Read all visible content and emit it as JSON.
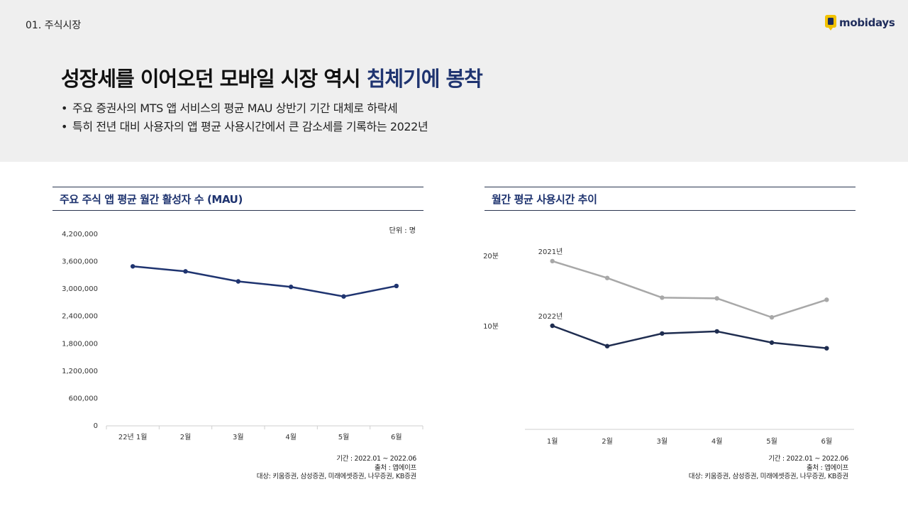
{
  "header": {
    "section": "01. 주식시장",
    "brand": "mobidays",
    "headline_main": "성장세를 이어오던 모바일 시장 역시 ",
    "headline_accent": "침체기에 봉착",
    "bullets": [
      "주요 증권사의 MTS 앱 서비스의 평균 MAU 상반기 기간 대체로 하락세",
      "특히 전년 대비 사용자의 앱 평균 사용시간에서 큰 감소세를 기록하는 2022년"
    ]
  },
  "colors": {
    "navy": "#1f3470",
    "gray_series": "#a8a8a8",
    "band": "#efefef"
  },
  "footnotes": {
    "period": "기간 : 2022.01 ~ 2022.06",
    "source": "출처 : 앱에이프",
    "targets": "대상: 키움증권, 삼성증권, 미래에셋증권, 나무증권, KB증권"
  },
  "chart_data": [
    {
      "type": "line",
      "title": "주요 주식 앱 평균 월간 활성자 수 (MAU)",
      "unit": "단위 : 명",
      "categories": [
        "22년 1월",
        "2월",
        "3월",
        "4월",
        "5월",
        "6월"
      ],
      "series": [
        {
          "values": [
            3480000,
            3370000,
            3150000,
            3030000,
            2820000,
            3050000
          ]
        }
      ],
      "yticks": [
        "4,200,000",
        "3,600,000",
        "3,000,000",
        "2,400,000",
        "1,800,000",
        "1,200,000",
        "600,000",
        "0"
      ],
      "ylim": [
        0,
        4200000
      ],
      "grid": false
    },
    {
      "type": "line",
      "title": "월간 평균 사용시간 추이",
      "categories": [
        "1월",
        "2월",
        "3월",
        "4월",
        "5월",
        "6월"
      ],
      "series": [
        {
          "name": "2021년",
          "values": [
            19.2,
            16.8,
            14.0,
            13.9,
            11.2,
            13.7
          ]
        },
        {
          "name": "2022년",
          "values": [
            10.0,
            7.1,
            8.9,
            9.2,
            7.6,
            6.8
          ]
        }
      ],
      "yticks": [
        "20분",
        "10분"
      ],
      "ylim": [
        0,
        20
      ],
      "grid": false
    }
  ]
}
